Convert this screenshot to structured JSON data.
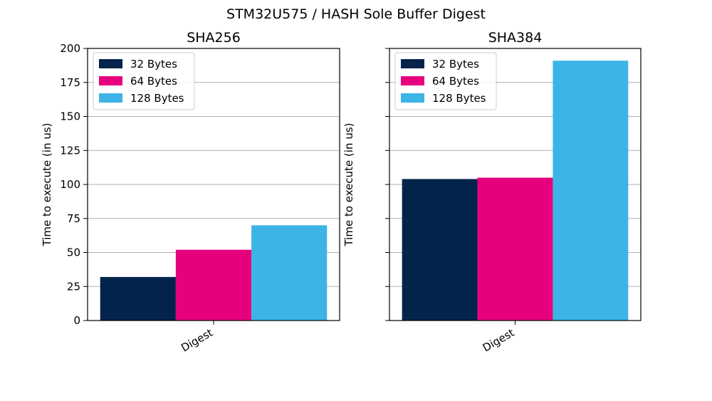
{
  "figure": {
    "title": "STM32U575 / HASH Sole Buffer Digest"
  },
  "chart_data": [
    {
      "type": "bar",
      "title": "SHA256",
      "xlabel": "",
      "ylabel": "Time to execute (in us)",
      "categories": [
        "Digest"
      ],
      "ylim": [
        0,
        200
      ],
      "yticks": [
        0,
        25,
        50,
        75,
        100,
        125,
        150,
        175,
        200
      ],
      "grid": true,
      "legend": "top-left",
      "series": [
        {
          "name": "32 Bytes",
          "values": [
            32
          ],
          "color": "#03234b"
        },
        {
          "name": "64 Bytes",
          "values": [
            52
          ],
          "color": "#e6007e"
        },
        {
          "name": "128 Bytes",
          "values": [
            70
          ],
          "color": "#3cb4e6"
        }
      ]
    },
    {
      "type": "bar",
      "title": "SHA384",
      "xlabel": "",
      "ylabel": "Time to execute (in us)",
      "categories": [
        "Digest"
      ],
      "ylim": [
        0,
        200
      ],
      "yticks": [
        0,
        25,
        50,
        75,
        100,
        125,
        150,
        175,
        200
      ],
      "show_ytick_labels": false,
      "grid": true,
      "legend": "top-left",
      "series": [
        {
          "name": "32 Bytes",
          "values": [
            104
          ],
          "color": "#03234b"
        },
        {
          "name": "64 Bytes",
          "values": [
            105
          ],
          "color": "#e6007e"
        },
        {
          "name": "128 Bytes",
          "values": [
            191
          ],
          "color": "#3cb4e6"
        }
      ]
    }
  ]
}
